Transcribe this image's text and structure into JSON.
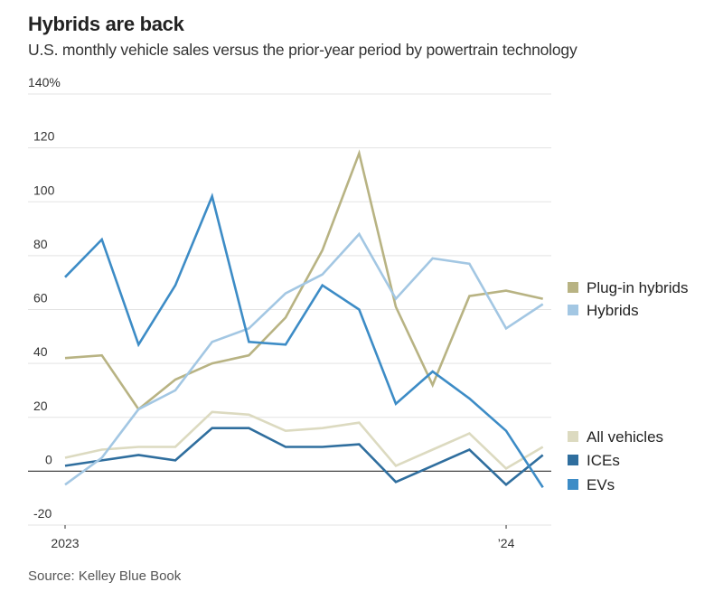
{
  "header": {
    "title": "Hybrids are back",
    "subtitle": "U.S. monthly vehicle sales versus the prior-year period by powertrain technology"
  },
  "footer": {
    "source": "Source: Kelley Blue Book"
  },
  "chart_data": {
    "type": "line",
    "title": "Hybrids are back",
    "subtitle": "U.S. monthly vehicle sales versus the prior-year period by powertrain technology",
    "xlabel": "",
    "ylabel": "",
    "x": [
      "Jan 2023",
      "Feb 2023",
      "Mar 2023",
      "Apr 2023",
      "May 2023",
      "Jun 2023",
      "Jul 2023",
      "Aug 2023",
      "Sep 2023",
      "Oct 2023",
      "Nov 2023",
      "Dec 2023",
      "Jan 2024",
      "Feb 2024"
    ],
    "x_ticks": [
      {
        "index": 0,
        "label": "2023"
      },
      {
        "index": 12,
        "label": "’24"
      }
    ],
    "ylim": [
      -20,
      140
    ],
    "y_ticks": [
      {
        "value": 140,
        "label": "140%"
      },
      {
        "value": 120,
        "label": "120"
      },
      {
        "value": 100,
        "label": "100"
      },
      {
        "value": 80,
        "label": "80"
      },
      {
        "value": 60,
        "label": "60"
      },
      {
        "value": 40,
        "label": "40"
      },
      {
        "value": 20,
        "label": "20"
      },
      {
        "value": 0,
        "label": "0"
      },
      {
        "value": -20,
        "label": "-20"
      }
    ],
    "grid": true,
    "legend_placement": "right",
    "series": [
      {
        "name": "Plug-in hybrids",
        "color": "#b8b383",
        "values": [
          42,
          43,
          23,
          34,
          40,
          43,
          57,
          82,
          118,
          61,
          32,
          65,
          67,
          64
        ]
      },
      {
        "name": "Hybrids",
        "color": "#a3c7e3",
        "values": [
          -5,
          5,
          23,
          30,
          48,
          53,
          66,
          73,
          88,
          64,
          79,
          77,
          53,
          62
        ]
      },
      {
        "name": "All vehicles",
        "color": "#dcdac0",
        "values": [
          5,
          8,
          9,
          9,
          22,
          21,
          15,
          16,
          18,
          2,
          8,
          14,
          1,
          9
        ]
      },
      {
        "name": "ICEs",
        "color": "#2f6e9e",
        "values": [
          2,
          4,
          6,
          4,
          16,
          16,
          9,
          9,
          10,
          -4,
          2,
          8,
          -5,
          6
        ]
      },
      {
        "name": "EVs",
        "color": "#3d8cc6",
        "values": [
          72,
          86,
          47,
          69,
          102,
          48,
          47,
          69,
          60,
          25,
          37,
          27,
          15,
          -6
        ]
      }
    ],
    "legend_groups": [
      [
        "Plug-in hybrids",
        "Hybrids"
      ],
      [
        "All vehicles",
        "ICEs",
        "EVs"
      ]
    ]
  }
}
